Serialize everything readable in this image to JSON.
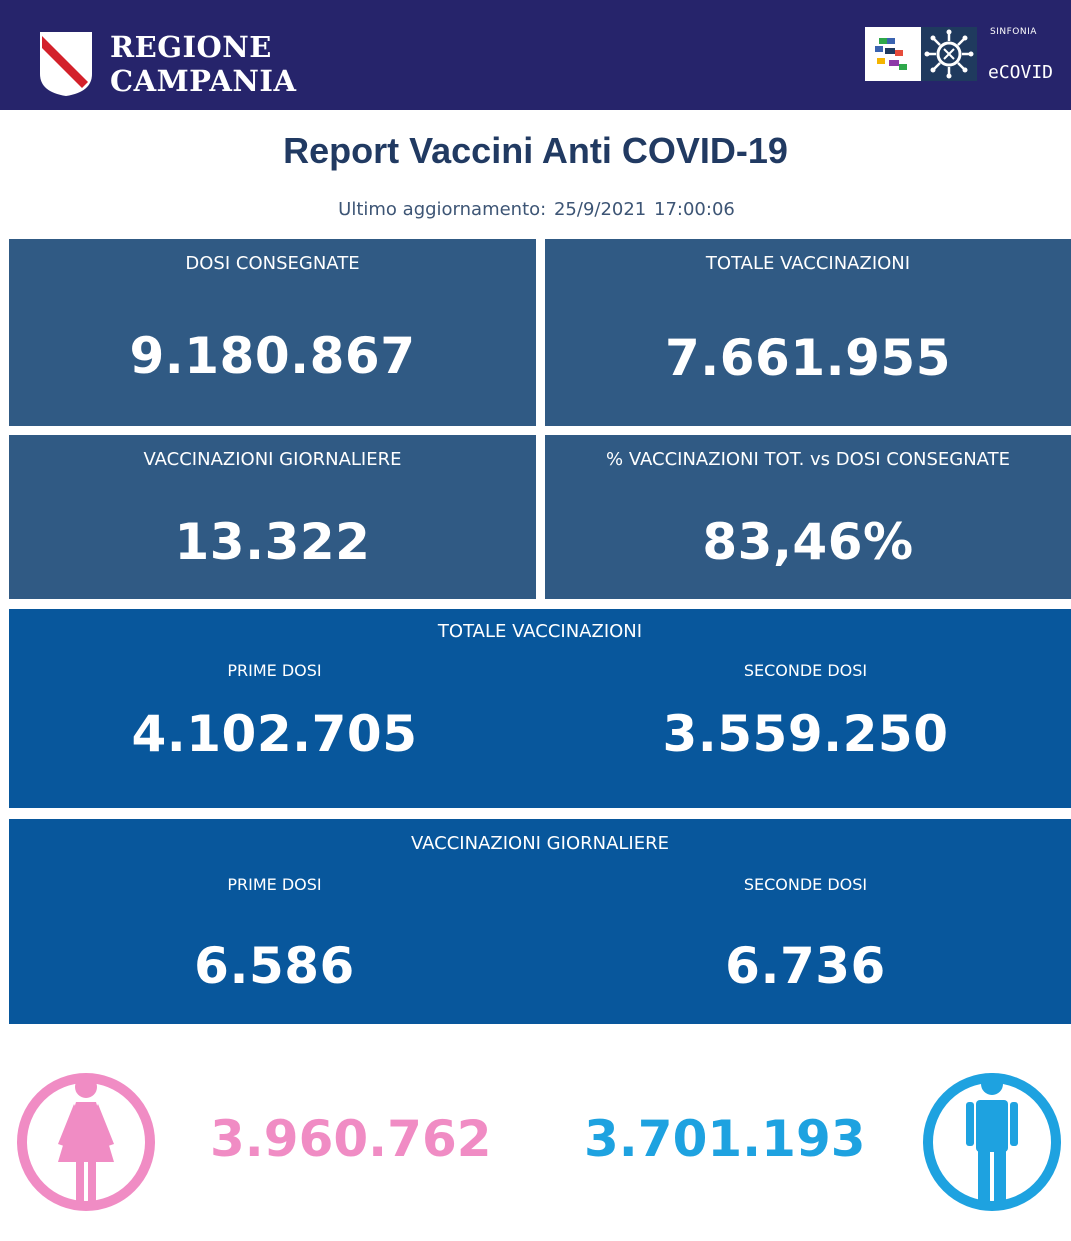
{
  "header": {
    "region_line1": "REGIONE",
    "region_line2": "CAMPANIA",
    "sinfonia_label": "SINFONIA",
    "ecovid_label": "eCOVID"
  },
  "title": "Report Vaccini Anti COVID-19",
  "updated": {
    "label": "Ultimo aggiornamento:",
    "date": "25/9/2021",
    "time": "17:00:06"
  },
  "cards": {
    "dosi_consegnate": {
      "label": "DOSI  CONSEGNATE",
      "value": "9.180.867"
    },
    "totale_vaccinazioni": {
      "label": "TOTALE VACCINAZIONI",
      "value": "7.661.955"
    },
    "vaccinazioni_giornaliere": {
      "label": "VACCINAZIONI GIORNALIERE",
      "value": "13.322"
    },
    "percentuale": {
      "label": "% VACCINAZIONI TOT. vs DOSI CONSEGNATE",
      "value": "83,46%"
    }
  },
  "totale_split": {
    "label": "TOTALE VACCINAZIONI",
    "prime_label": "PRIME DOSI",
    "prime_value": "4.102.705",
    "seconde_label": "SECONDE DOSI",
    "seconde_value": "3.559.250"
  },
  "giornaliere_split": {
    "label": "VACCINAZIONI GIORNALIERE",
    "prime_label": "PRIME DOSI",
    "prime_value": "6.586",
    "seconde_label": "SECONDE DOSI",
    "seconde_value": "6.736"
  },
  "gender": {
    "female_value": "3.960.762",
    "male_value": "3.701.193",
    "female_icon": "female-person-icon",
    "male_icon": "male-person-icon",
    "female_color": "#f08cc4",
    "male_color": "#1ea2e0"
  },
  "colors": {
    "header_bg": "#26246b",
    "card_dark": "#305a84",
    "card_blue": "#08579c",
    "title": "#213a62"
  }
}
